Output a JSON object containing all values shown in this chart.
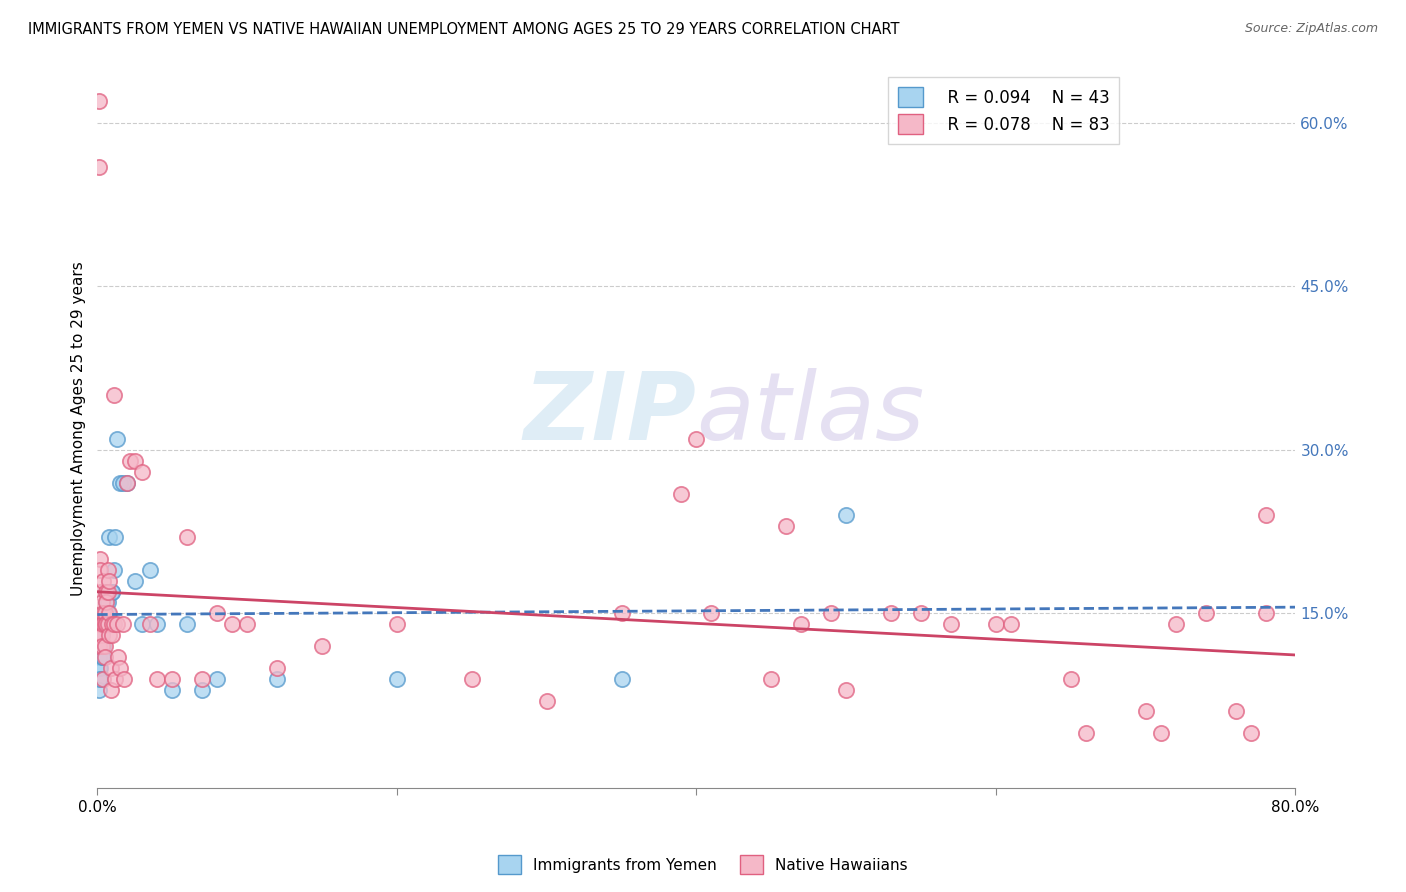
{
  "title": "IMMIGRANTS FROM YEMEN VS NATIVE HAWAIIAN UNEMPLOYMENT AMONG AGES 25 TO 29 YEARS CORRELATION CHART",
  "source": "Source: ZipAtlas.com",
  "ylabel": "Unemployment Among Ages 25 to 29 years",
  "xlim": [
    0,
    0.8
  ],
  "ylim": [
    -0.01,
    0.65
  ],
  "xtick_positions": [
    0.0,
    0.2,
    0.4,
    0.6,
    0.8
  ],
  "xticklabels": [
    "0.0%",
    "",
    "",
    "",
    "80.0%"
  ],
  "yticks_right": [
    0.15,
    0.3,
    0.45,
    0.6
  ],
  "ytick_right_labels": [
    "15.0%",
    "30.0%",
    "45.0%",
    "60.0%"
  ],
  "legend_blue_R": "R = 0.094",
  "legend_blue_N": "N = 43",
  "legend_pink_R": "R = 0.078",
  "legend_pink_N": "N = 83",
  "blue_fill": "#a8d4f0",
  "blue_edge": "#5599cc",
  "pink_fill": "#f5b8c8",
  "pink_edge": "#e06080",
  "blue_trend_color": "#4477bb",
  "pink_trend_color": "#cc4466",
  "watermark_zip": "ZIP",
  "watermark_atlas": "atlas",
  "blue_scatter_x": [
    0.001,
    0.001,
    0.001,
    0.001,
    0.002,
    0.002,
    0.002,
    0.002,
    0.003,
    0.003,
    0.003,
    0.004,
    0.004,
    0.004,
    0.005,
    0.005,
    0.006,
    0.006,
    0.007,
    0.007,
    0.008,
    0.008,
    0.009,
    0.01,
    0.01,
    0.011,
    0.012,
    0.013,
    0.015,
    0.017,
    0.02,
    0.025,
    0.03,
    0.035,
    0.04,
    0.05,
    0.06,
    0.07,
    0.08,
    0.12,
    0.2,
    0.35,
    0.5
  ],
  "blue_scatter_y": [
    0.1,
    0.11,
    0.09,
    0.08,
    0.13,
    0.12,
    0.1,
    0.09,
    0.14,
    0.13,
    0.11,
    0.14,
    0.12,
    0.11,
    0.15,
    0.14,
    0.17,
    0.16,
    0.16,
    0.15,
    0.22,
    0.14,
    0.14,
    0.17,
    0.17,
    0.19,
    0.22,
    0.31,
    0.27,
    0.27,
    0.27,
    0.18,
    0.14,
    0.19,
    0.14,
    0.08,
    0.14,
    0.08,
    0.09,
    0.09,
    0.09,
    0.09,
    0.24
  ],
  "pink_scatter_x": [
    0.001,
    0.001,
    0.001,
    0.001,
    0.002,
    0.002,
    0.002,
    0.002,
    0.002,
    0.003,
    0.003,
    0.003,
    0.003,
    0.004,
    0.004,
    0.004,
    0.004,
    0.005,
    0.005,
    0.005,
    0.005,
    0.006,
    0.006,
    0.006,
    0.007,
    0.007,
    0.007,
    0.008,
    0.008,
    0.008,
    0.009,
    0.009,
    0.01,
    0.01,
    0.011,
    0.011,
    0.012,
    0.013,
    0.014,
    0.015,
    0.017,
    0.018,
    0.02,
    0.022,
    0.025,
    0.03,
    0.035,
    0.04,
    0.05,
    0.06,
    0.07,
    0.08,
    0.09,
    0.1,
    0.12,
    0.15,
    0.2,
    0.25,
    0.3,
    0.35,
    0.4,
    0.45,
    0.5,
    0.55,
    0.6,
    0.65,
    0.7,
    0.72,
    0.74,
    0.76,
    0.77,
    0.78,
    0.78,
    0.39,
    0.41,
    0.46,
    0.47,
    0.49,
    0.53,
    0.57,
    0.61,
    0.66,
    0.71
  ],
  "pink_scatter_y": [
    0.62,
    0.56,
    0.14,
    0.12,
    0.2,
    0.17,
    0.14,
    0.13,
    0.19,
    0.16,
    0.14,
    0.13,
    0.12,
    0.18,
    0.15,
    0.14,
    0.09,
    0.15,
    0.14,
    0.12,
    0.11,
    0.17,
    0.16,
    0.14,
    0.19,
    0.17,
    0.14,
    0.18,
    0.15,
    0.13,
    0.1,
    0.08,
    0.14,
    0.13,
    0.35,
    0.14,
    0.09,
    0.14,
    0.11,
    0.1,
    0.14,
    0.09,
    0.27,
    0.29,
    0.29,
    0.28,
    0.14,
    0.09,
    0.09,
    0.22,
    0.09,
    0.15,
    0.14,
    0.14,
    0.1,
    0.12,
    0.14,
    0.09,
    0.07,
    0.15,
    0.31,
    0.09,
    0.08,
    0.15,
    0.14,
    0.09,
    0.06,
    0.14,
    0.15,
    0.06,
    0.04,
    0.15,
    0.24,
    0.26,
    0.15,
    0.23,
    0.14,
    0.15,
    0.15,
    0.14,
    0.14,
    0.04,
    0.04
  ]
}
